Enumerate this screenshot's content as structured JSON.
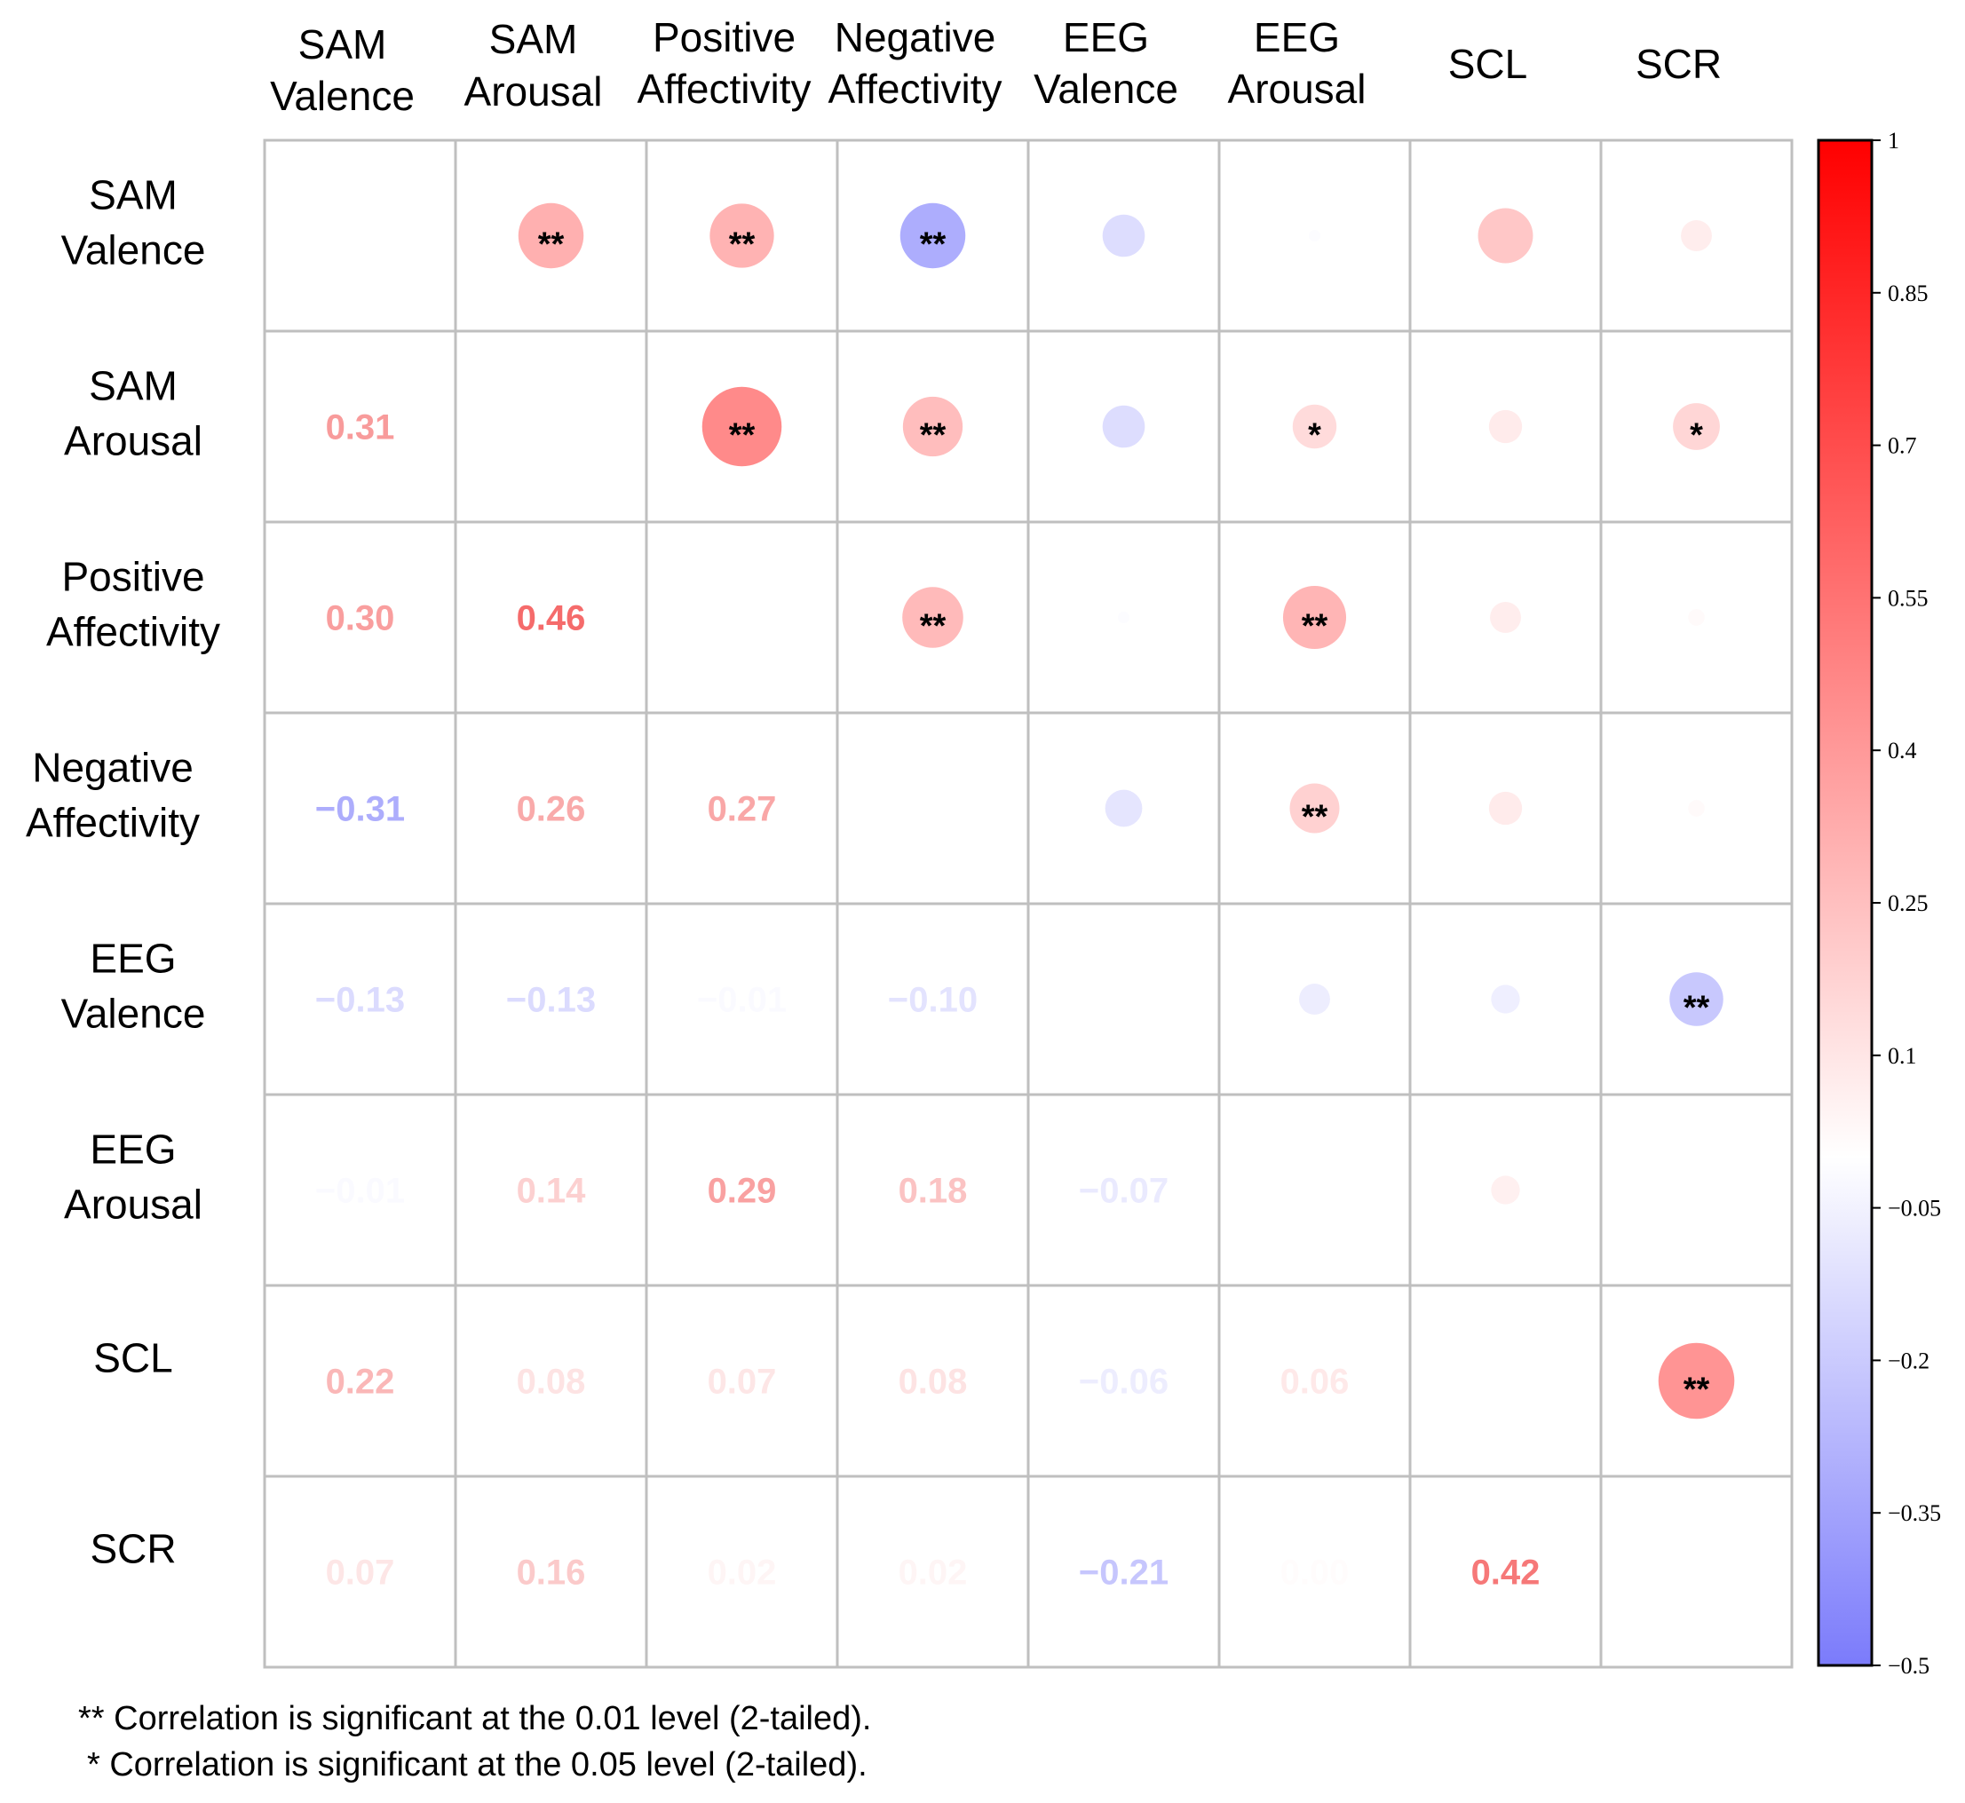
{
  "chart_data": {
    "type": "heatmap",
    "subtype": "correlation-matrix",
    "variables": [
      [
        "SAM",
        "Valence"
      ],
      [
        "SAM",
        "Arousal"
      ],
      [
        "Positive",
        "Affectivity"
      ],
      [
        "Negative",
        "Affectivity"
      ],
      [
        "EEG",
        "Valence"
      ],
      [
        "EEG",
        "Arousal"
      ],
      [
        "SCL"
      ],
      [
        "SCR"
      ]
    ],
    "matrix": [
      [
        null,
        0.31,
        0.3,
        -0.31,
        -0.13,
        -0.01,
        0.22,
        0.07
      ],
      [
        0.31,
        null,
        0.46,
        0.26,
        -0.13,
        0.14,
        0.08,
        0.16
      ],
      [
        0.3,
        0.46,
        null,
        0.27,
        -0.01,
        0.29,
        0.07,
        0.02
      ],
      [
        -0.31,
        0.26,
        0.27,
        null,
        -0.1,
        0.18,
        0.08,
        0.02
      ],
      [
        -0.13,
        -0.13,
        -0.01,
        -0.1,
        null,
        -0.07,
        -0.06,
        -0.21
      ],
      [
        -0.01,
        0.14,
        0.29,
        0.18,
        -0.07,
        null,
        0.06,
        0.0
      ],
      [
        0.22,
        0.08,
        0.07,
        0.08,
        -0.06,
        0.06,
        null,
        0.42
      ],
      [
        0.07,
        0.16,
        0.02,
        0.02,
        -0.21,
        0.0,
        0.42,
        null
      ]
    ],
    "lower_triangle_labels": [
      [
        null,
        null,
        null,
        null,
        null,
        null,
        null,
        null
      ],
      [
        "0.31",
        null,
        null,
        null,
        null,
        null,
        null,
        null
      ],
      [
        "0.30",
        "0.46",
        null,
        null,
        null,
        null,
        null,
        null
      ],
      [
        "−0.31",
        "0.26",
        "0.27",
        null,
        null,
        null,
        null,
        null
      ],
      [
        "−0.13",
        "−0.13",
        "−0.01",
        "−0.10",
        null,
        null,
        null,
        null
      ],
      [
        "−0.01",
        "0.14",
        "0.29",
        "0.18",
        "−0.07",
        null,
        null,
        null
      ],
      [
        "0.22",
        "0.08",
        "0.07",
        "0.08",
        "−0.06",
        "0.06",
        null,
        null
      ],
      [
        "0.07",
        "0.16",
        "0.02",
        "0.02",
        "−0.21",
        "0.00",
        "0.42",
        null
      ]
    ],
    "significance": [
      [
        "",
        "**",
        "**",
        "**",
        "",
        "",
        "",
        ""
      ],
      [
        "",
        "",
        "**",
        "**",
        "",
        "*",
        "",
        "*"
      ],
      [
        "",
        "",
        "",
        "**",
        "",
        "**",
        "",
        ""
      ],
      [
        "",
        "",
        "",
        "",
        "",
        "**",
        "",
        ""
      ],
      [
        "",
        "",
        "",
        "",
        "",
        "",
        "",
        "**"
      ],
      [
        "",
        "",
        "",
        "",
        "",
        "",
        "",
        ""
      ],
      [
        "",
        "",
        "",
        "",
        "",
        "",
        "",
        "**"
      ],
      [
        "",
        "",
        "",
        "",
        "",
        "",
        "",
        ""
      ]
    ],
    "colorbar": {
      "range": [
        -0.5,
        1
      ],
      "ticks": [
        "1",
        "0.85",
        "0.7",
        "0.55",
        "0.4",
        "0.25",
        "0.1",
        "−0.05",
        "−0.2",
        "−0.35",
        "−0.5"
      ],
      "tick_values": [
        1,
        0.85,
        0.7,
        0.55,
        0.4,
        0.25,
        0.1,
        -0.05,
        -0.2,
        -0.35,
        -0.5
      ],
      "positive_color": "#ff0000",
      "neutral_color": "#ffffff",
      "negative_color": "#7b7bfb"
    },
    "upper_triangle": "circles sized and colored by correlation",
    "lower_triangle": "numeric correlation values colored by correlation"
  },
  "footnotes": {
    "double_star": "** Correlation is significant at the 0.01 level (2-tailed).",
    "single_star": "* Correlation is significant at the 0.05 level (2-tailed)."
  }
}
